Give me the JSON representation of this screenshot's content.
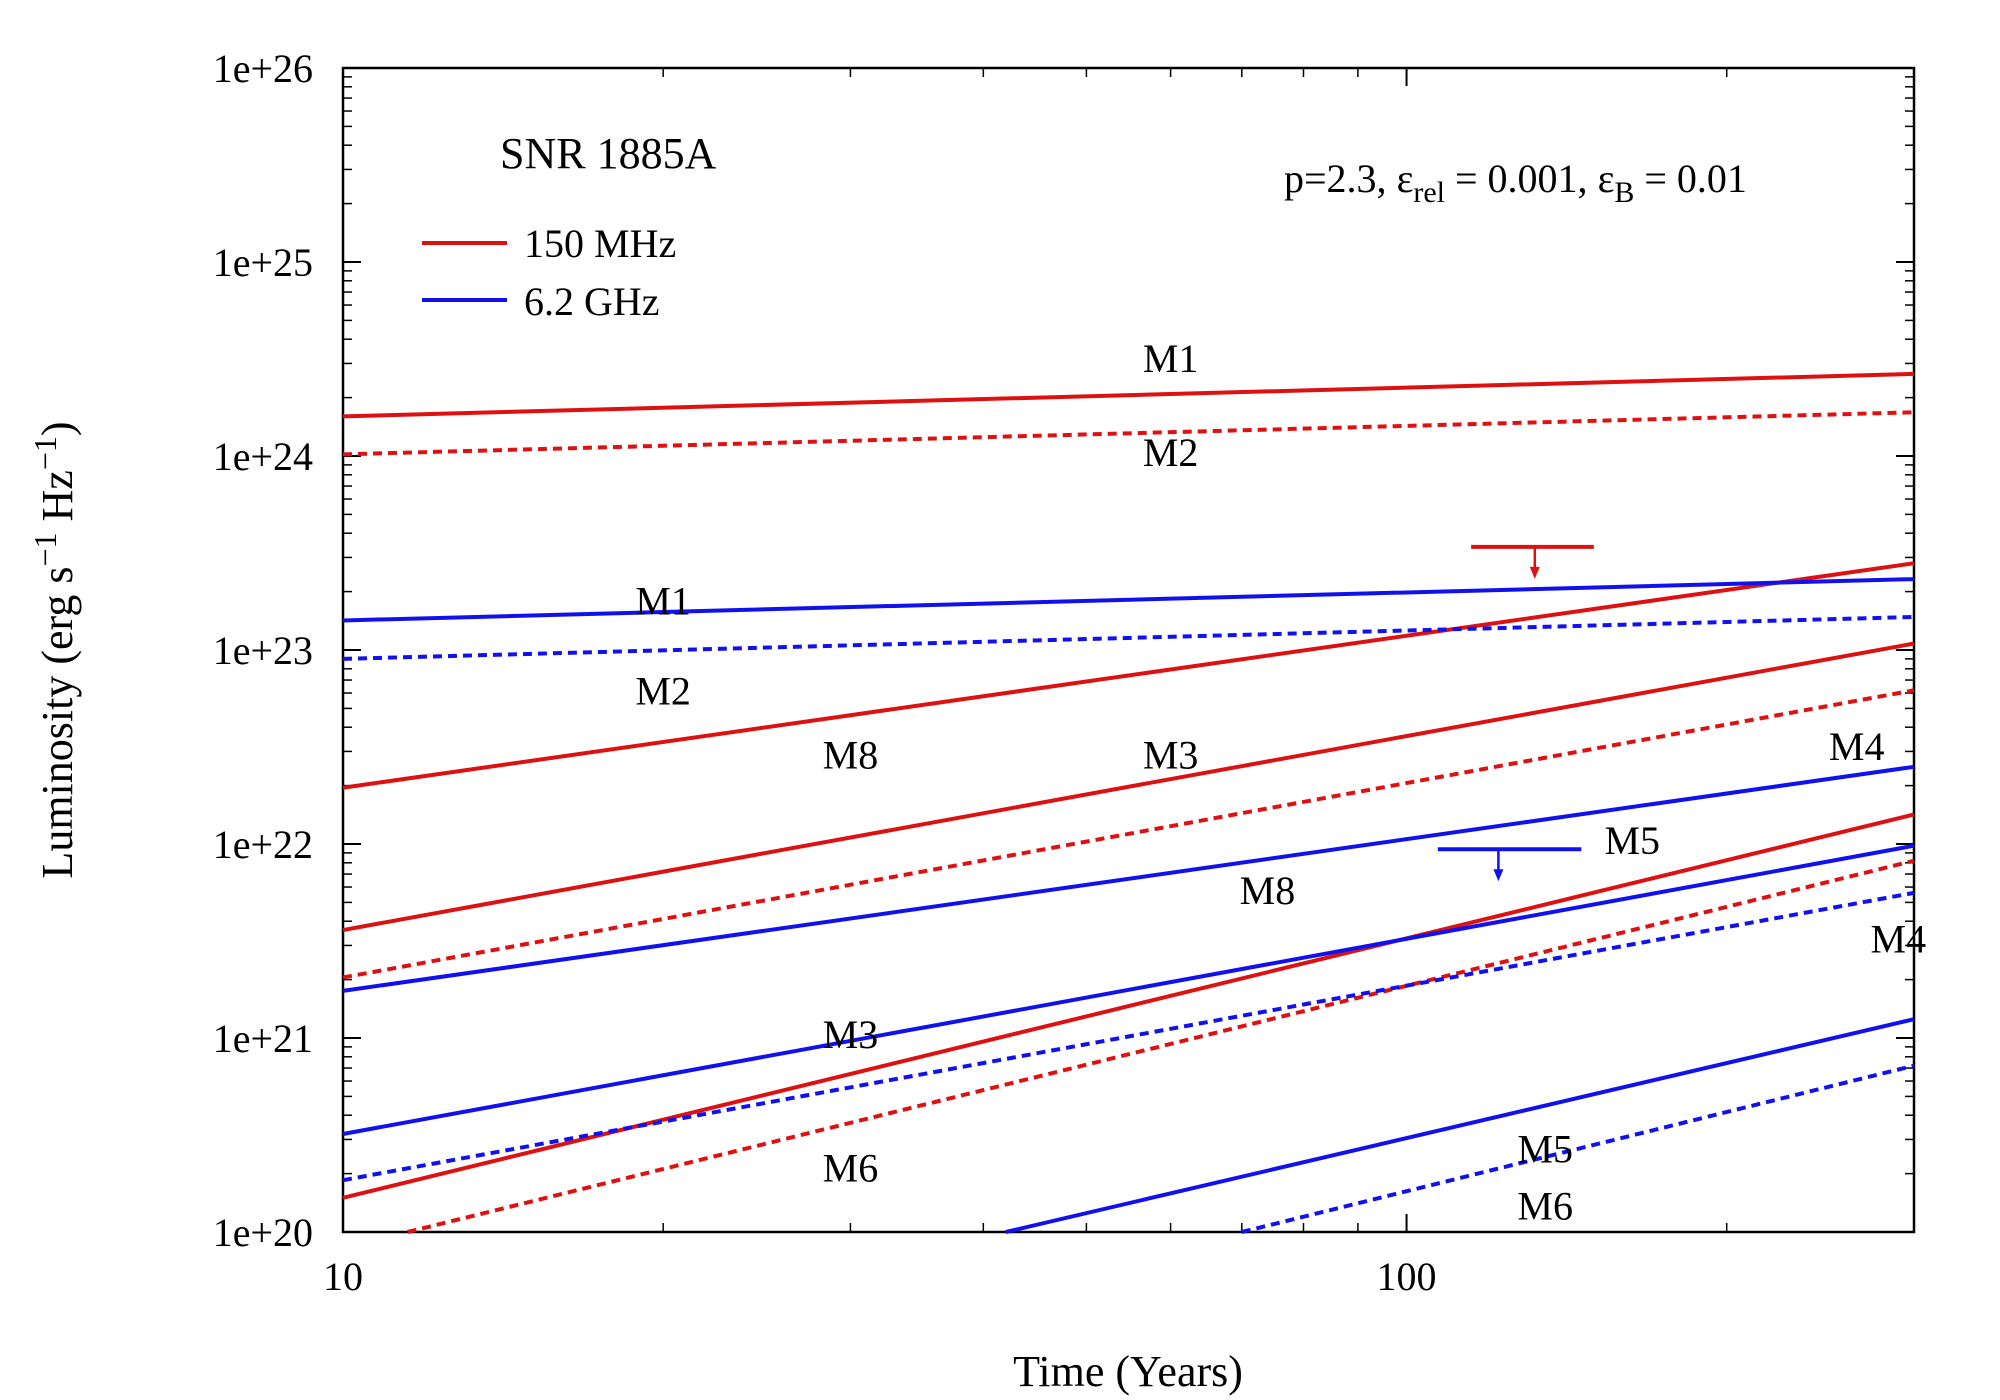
{
  "chart_data": {
    "type": "line",
    "title": "SNR 1885A",
    "annotation": {
      "p_label": "p=2.3, ",
      "eps": "ε",
      "rel_sub": "rel",
      "rel_value": " = 0.001, ",
      "b_sub": "B",
      "b_value": " = 0.01"
    },
    "xlabel": "Time (Years)",
    "ylabel": {
      "main": "Luminosity (erg s",
      "exp1": "−1",
      "mid": " Hz",
      "exp2": "−1",
      "end": ")"
    },
    "x_scale": "log",
    "y_scale": "log",
    "xlim": [
      10,
      300
    ],
    "ylim": [
      1e+20,
      1e+26
    ],
    "x_ticks": [
      {
        "value": 10,
        "label": "10"
      },
      {
        "value": 100,
        "label": "100"
      }
    ],
    "y_ticks": [
      {
        "value": 1e+20,
        "label": "1e+20"
      },
      {
        "value": 1e+21,
        "label": "1e+21"
      },
      {
        "value": 1e+22,
        "label": "1e+22"
      },
      {
        "value": 1e+23,
        "label": "1e+23"
      },
      {
        "value": 1e+24,
        "label": "1e+24"
      },
      {
        "value": 1e+25,
        "label": "1e+25"
      },
      {
        "value": 1e+26,
        "label": "1e+26"
      }
    ],
    "legend_position": "top-left",
    "legend": [
      {
        "label": "150 MHz",
        "color": "#dd1111"
      },
      {
        "label": "6.2 GHz",
        "color": "#1111ee"
      }
    ],
    "series": [
      {
        "id": "r-m1",
        "band": "150 MHz",
        "model": "M1",
        "color": "#dd1111",
        "dash": false,
        "x": [
          10,
          300
        ],
        "y": [
          1.6e+24,
          2.65e+24
        ]
      },
      {
        "id": "r-m2",
        "band": "150 MHz",
        "model": "M2",
        "color": "#dd1111",
        "dash": true,
        "x": [
          10,
          300
        ],
        "y": [
          1.02e+24,
          1.68e+24
        ]
      },
      {
        "id": "r-m8",
        "band": "150 MHz",
        "model": "M8",
        "color": "#dd1111",
        "dash": false,
        "x": [
          10,
          300
        ],
        "y": [
          1.95e+22,
          2.8e+23
        ]
      },
      {
        "id": "r-m3",
        "band": "150 MHz",
        "model": "M3",
        "color": "#dd1111",
        "dash": false,
        "x": [
          10,
          300
        ],
        "y": [
          3.6e+21,
          1.08e+23
        ]
      },
      {
        "id": "r-m4",
        "band": "150 MHz",
        "model": "M4",
        "color": "#dd1111",
        "dash": true,
        "x": [
          10,
          300
        ],
        "y": [
          2.05e+21,
          6.2e+22
        ]
      },
      {
        "id": "r-m5",
        "band": "150 MHz",
        "model": "M5",
        "color": "#dd1111",
        "dash": false,
        "x": [
          10,
          300
        ],
        "y": [
          1.5e+20,
          1.42e+22
        ]
      },
      {
        "id": "r-m6",
        "band": "150 MHz",
        "model": "M6",
        "color": "#dd1111",
        "dash": true,
        "x": [
          11.5,
          300
        ],
        "y": [
          1e+20,
          8.2e+21
        ]
      },
      {
        "id": "b-m1",
        "band": "6.2 GHz",
        "model": "M1",
        "color": "#1111ee",
        "dash": false,
        "x": [
          10,
          300
        ],
        "y": [
          1.42e+23,
          2.32e+23
        ]
      },
      {
        "id": "b-m2",
        "band": "6.2 GHz",
        "model": "M2",
        "color": "#1111ee",
        "dash": true,
        "x": [
          10,
          300
        ],
        "y": [
          9e+22,
          1.48e+23
        ]
      },
      {
        "id": "b-m8",
        "band": "6.2 GHz",
        "model": "M8",
        "color": "#1111ee",
        "dash": false,
        "x": [
          10,
          300
        ],
        "y": [
          1.75e+21,
          2.5e+22
        ]
      },
      {
        "id": "b-m3",
        "band": "6.2 GHz",
        "model": "M3",
        "color": "#1111ee",
        "dash": false,
        "x": [
          10,
          300
        ],
        "y": [
          3.2e+20,
          9.8e+21
        ]
      },
      {
        "id": "b-m4",
        "band": "6.2 GHz",
        "model": "M4",
        "color": "#1111ee",
        "dash": true,
        "x": [
          10,
          300
        ],
        "y": [
          1.85e+20,
          5.6e+21
        ]
      },
      {
        "id": "b-m5",
        "band": "6.2 GHz",
        "model": "M5",
        "color": "#1111ee",
        "dash": false,
        "x": [
          42,
          300
        ],
        "y": [
          1e+20,
          1.25e+21
        ]
      },
      {
        "id": "b-m6",
        "band": "6.2 GHz",
        "model": "M6",
        "color": "#1111ee",
        "dash": true,
        "x": [
          70,
          300
        ],
        "y": [
          1e+20,
          7.2e+20
        ]
      }
    ],
    "series_labels": [
      {
        "text": "M1",
        "color_of": "150 MHz",
        "x": 60,
        "y": 3.2e+24
      },
      {
        "text": "M2",
        "color_of": "150 MHz",
        "x": 60,
        "y": 1.05e+24
      },
      {
        "text": "M1",
        "color_of": "6.2 GHz",
        "x": 20,
        "y": 1.8e+23
      },
      {
        "text": "M2",
        "color_of": "6.2 GHz",
        "x": 20,
        "y": 6.2e+22
      },
      {
        "text": "M8",
        "color_of": "150 MHz",
        "x": 30,
        "y": 2.9e+22
      },
      {
        "text": "M3",
        "color_of": "150 MHz",
        "x": 60,
        "y": 2.9e+22
      },
      {
        "text": "M4",
        "color_of": "150 MHz",
        "x": 265,
        "y": 3.2e+22
      },
      {
        "text": "M5",
        "color_of": "6.2 GHz",
        "x": 163,
        "y": 1.05e+22
      },
      {
        "text": "M8",
        "color_of": "6.2 GHz",
        "x": 74,
        "y": 5.8e+21
      },
      {
        "text": "M4",
        "color_of": "6.2 GHz",
        "x": 290,
        "y": 3.25e+21
      },
      {
        "text": "M3",
        "color_of": "6.2 GHz",
        "x": 30,
        "y": 1.05e+21
      },
      {
        "text": "M5",
        "color_of": "6.2 GHz",
        "x": 135,
        "y": 2.7e+20
      },
      {
        "text": "M6",
        "color_of": "150 MHz",
        "x": 30,
        "y": 2.15e+20
      },
      {
        "text": "M6",
        "color_of": "6.2 GHz",
        "x": 135,
        "y": 1.37e+20
      }
    ],
    "upper_limits": [
      {
        "band": "150 MHz",
        "color": "#dd1111",
        "x": 132,
        "x_range": [
          115,
          150
        ],
        "y": 3.4e+23
      },
      {
        "band": "6.2 GHz",
        "color": "#1111ee",
        "x": 122,
        "x_range": [
          107,
          146
        ],
        "y": 9.4e+21
      }
    ]
  }
}
